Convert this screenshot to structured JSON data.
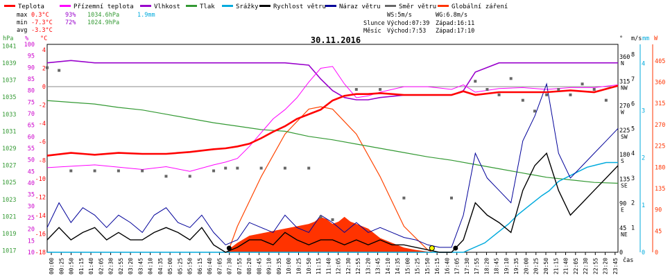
{
  "chart_data": {
    "type": "line",
    "title": "30.11.2016",
    "legend": [
      {
        "label": "Teplota",
        "color": "#ff0000"
      },
      {
        "label": "Přízemní teplota",
        "color": "#ff00ff"
      },
      {
        "label": "Vlhkost",
        "color": "#9900cc"
      },
      {
        "label": "Tlak",
        "color": "#339933"
      },
      {
        "label": "Srážky",
        "color": "#00aadd"
      },
      {
        "label": "Rychlost větru",
        "color": "#000000"
      },
      {
        "label": "Náraz větru",
        "color": "#000099"
      },
      {
        "label": "Směr větru",
        "color": "#666666"
      },
      {
        "label": "Globální záření",
        "color": "#ff3300"
      }
    ],
    "stats": {
      "max": {
        "label": "max",
        "temp": "0.3°C",
        "hum": "93%",
        "press": "1034.6hPa",
        "rain": "1.9mm"
      },
      "min": {
        "label": "min",
        "temp": "-7.3°C",
        "hum": "72%",
        "press": "1024.9hPa"
      },
      "avg": {
        "label": "avg",
        "temp": "-3.3°C"
      }
    },
    "info": {
      "ws": "WS:5m/s",
      "wg": "WG:6.8m/s",
      "sun_label": "Slunce",
      "sun_rise": "Východ:07:39",
      "sun_set": "Západ:16:11",
      "moon_label": "Měsíc",
      "moon_rise": "Východ:7:53",
      "moon_set": "Západ:17:10"
    },
    "axes": {
      "hpa": {
        "label": "hPa",
        "ticks": [
          "1041",
          "1039",
          "1037",
          "1035",
          "1033",
          "1031",
          "1029",
          "1027",
          "1025",
          "1023",
          "1021",
          "1019",
          "1017"
        ]
      },
      "pct": {
        "label": "%",
        "ticks": [
          "100",
          "95",
          "90",
          "85",
          "80",
          "75",
          "70",
          "65",
          "60",
          "55",
          "50",
          "45",
          "40",
          "35",
          "30",
          "25",
          "20",
          "15",
          "10"
        ]
      },
      "temp": {
        "label": "°C",
        "ticks": [
          "4",
          "2",
          "0",
          "-2",
          "-4",
          "-6",
          "-8",
          "-10",
          "-12",
          "-14",
          "-16",
          "-18"
        ]
      },
      "dir": {
        "label": "°",
        "ticks": [
          "360",
          "315",
          "270",
          "225",
          "180",
          "135",
          "90",
          "45",
          "0"
        ],
        "names": [
          "N",
          "NW",
          "W",
          "SW",
          "S",
          "SE",
          "E",
          "NE",
          ""
        ]
      },
      "ms": {
        "label": "m/s",
        "ticks": [
          "8",
          "7",
          "6",
          "5",
          "4",
          "3",
          "2",
          "1",
          "0"
        ]
      },
      "mm": {
        "label": "mm",
        "ticks": [
          "4",
          "3",
          "2",
          "1",
          "0"
        ]
      },
      "wm2": {
        "label": "W",
        "ticks": [
          "405",
          "360",
          "315",
          "270",
          "225",
          "180",
          "135",
          "90",
          "45",
          "0"
        ]
      },
      "xlabel": "čas",
      "xticks": [
        "00:00",
        "00:25",
        "00:50",
        "01:15",
        "01:40",
        "02:05",
        "02:30",
        "02:55",
        "03:20",
        "03:45",
        "04:10",
        "04:35",
        "05:00",
        "05:25",
        "05:50",
        "06:15",
        "06:40",
        "07:05",
        "07:30",
        "07:55",
        "08:20",
        "08:45",
        "09:10",
        "09:35",
        "10:00",
        "10:25",
        "10:50",
        "11:15",
        "11:40",
        "12:05",
        "12:30",
        "12:55",
        "13:20",
        "13:45",
        "14:10",
        "14:35",
        "15:00",
        "15:25",
        "15:50",
        "16:15",
        "16:40",
        "17:05",
        "17:30",
        "17:55",
        "18:20",
        "18:45",
        "19:10",
        "19:35",
        "20:00",
        "20:25",
        "20:50",
        "21:15",
        "21:40",
        "22:05",
        "22:30",
        "22:55",
        "23:20",
        "23:45"
      ]
    },
    "series": {
      "teplota_x": [
        0,
        1,
        2,
        3,
        4,
        5,
        6,
        7,
        7.5,
        8,
        8.5,
        9,
        9.5,
        10,
        10.5,
        11,
        11.5,
        12,
        12.5,
        13,
        13.5,
        14,
        14.5,
        15,
        16,
        17,
        17.5,
        18,
        19,
        20,
        21,
        22,
        23,
        24
      ],
      "teplota_y": [
        -7.5,
        -7.2,
        -7.4,
        -7.2,
        -7.3,
        -7.3,
        -7.1,
        -6.8,
        -6.7,
        -6.5,
        -6.2,
        -5.6,
        -4.9,
        -4.3,
        -3.5,
        -3,
        -2.5,
        -1.5,
        -1,
        -0.8,
        -0.8,
        -0.7,
        -0.8,
        -0.9,
        -0.9,
        -0.9,
        -0.5,
        -0.9,
        -0.6,
        -0.6,
        -0.6,
        -0.4,
        -0.6,
        0.1
      ],
      "prizemni_x": [
        0,
        2,
        4,
        5,
        6,
        7,
        7.5,
        8,
        8.5,
        9,
        9.5,
        10,
        10.5,
        11,
        11.5,
        12,
        12.5,
        13,
        13.5,
        14,
        15,
        16,
        17,
        17.5,
        18,
        19,
        20,
        21,
        22,
        23,
        24
      ],
      "prizemni_y": [
        -8.8,
        -8.5,
        -9,
        -8.7,
        -9.2,
        -8.5,
        -8.2,
        -7.8,
        -6.5,
        -5,
        -3.5,
        -2.5,
        -1.2,
        0.5,
        2,
        2.2,
        0.3,
        -1.2,
        -1,
        -0.6,
        0,
        0,
        -0.3,
        0.2,
        -0.6,
        -0.2,
        -0.1,
        -0.3,
        -0.1,
        -0.1,
        0.2
      ],
      "vlhkost_x": [
        0,
        1,
        2,
        3,
        4,
        5,
        6,
        7,
        8,
        9,
        10,
        11,
        11.5,
        12,
        12.5,
        13,
        13.5,
        14,
        15,
        16,
        17,
        17.5,
        18,
        19,
        20,
        21,
        22,
        23,
        24
      ],
      "vlhkost_y": [
        92,
        93,
        92,
        92,
        92,
        92,
        92,
        92,
        92,
        92,
        92,
        91,
        85,
        80,
        77,
        76,
        76,
        77,
        78,
        78,
        78,
        80,
        88,
        92,
        92,
        92,
        92,
        92,
        92
      ],
      "tlak_x": [
        0,
        1,
        2,
        3,
        4,
        5,
        6,
        7,
        8,
        9,
        10,
        11,
        12,
        13,
        14,
        15,
        16,
        17,
        18,
        19,
        20,
        21,
        22,
        23,
        24
      ],
      "tlak_y": [
        1034.6,
        1034.4,
        1034.2,
        1033.8,
        1033.5,
        1033,
        1032.5,
        1032,
        1031.6,
        1031.2,
        1031,
        1030.4,
        1030,
        1029.5,
        1029,
        1028.5,
        1028,
        1027.6,
        1027.1,
        1026.6,
        1026.1,
        1025.6,
        1025.3,
        1025,
        1024.9
      ],
      "srazky_x": [
        0,
        17.5,
        18.4,
        18.9,
        19.4,
        19.8,
        20.3,
        20.8,
        21.1,
        21.5,
        21.9,
        22.3,
        22.7,
        23.1,
        23.5,
        24
      ],
      "srazky_y": [
        0,
        0,
        0.2,
        0.4,
        0.6,
        0.8,
        1.0,
        1.2,
        1.3,
        1.5,
        1.6,
        1.7,
        1.8,
        1.85,
        1.9,
        1.9
      ],
      "rychlost_x": [
        0,
        0.5,
        1,
        1.5,
        2,
        2.5,
        3,
        3.5,
        4,
        4.5,
        5,
        5.5,
        6,
        6.5,
        7,
        7.5,
        8,
        8.5,
        9,
        9.5,
        10,
        10.5,
        11,
        11.5,
        12,
        12.5,
        13,
        13.5,
        14,
        14.5,
        15,
        15.5,
        16,
        16.5,
        17,
        17.5,
        18,
        18.5,
        19,
        19.5,
        20,
        20.5,
        21,
        21.5,
        22,
        22.5,
        23,
        23.5,
        24
      ],
      "rychlost_y": [
        0.5,
        1.0,
        0.5,
        0.8,
        1.0,
        0.5,
        0.8,
        0.5,
        0.5,
        0.8,
        1.0,
        0.8,
        0.5,
        1.0,
        0.3,
        0,
        0.2,
        0.5,
        0.5,
        0.3,
        0.8,
        0.5,
        0.3,
        0.5,
        0.5,
        0.3,
        0.5,
        0.3,
        0.5,
        0.3,
        0.3,
        0.2,
        0.1,
        0,
        0,
        0.5,
        2.0,
        1.5,
        1.2,
        0.8,
        2.5,
        3.5,
        4.0,
        2.5,
        1.5,
        2.0,
        2.5,
        3.0,
        3.5
      ],
      "naraz_x": [
        0,
        0.5,
        1,
        1.5,
        2,
        2.5,
        3,
        3.5,
        4,
        4.5,
        5,
        5.5,
        6,
        6.5,
        7,
        7.5,
        8,
        8.5,
        9,
        9.5,
        10,
        10.5,
        11,
        11.5,
        12,
        12.5,
        13,
        13.5,
        14,
        14.5,
        15,
        15.5,
        16,
        16.5,
        17,
        17.5,
        18,
        18.5,
        19,
        19.5,
        20,
        20.5,
        21,
        21.5,
        22,
        22.5,
        23,
        23.5,
        24
      ],
      "naraz_y": [
        1.0,
        2.0,
        1.2,
        1.8,
        1.5,
        1.0,
        1.5,
        1.2,
        0.8,
        1.5,
        1.8,
        1.2,
        1.0,
        1.5,
        0.8,
        0.3,
        0.5,
        1.2,
        1.0,
        0.8,
        1.5,
        1.0,
        0.8,
        1.5,
        1.2,
        0.8,
        1.2,
        0.8,
        1.0,
        0.8,
        0.6,
        0.5,
        0.3,
        0.2,
        0.2,
        1.5,
        4.0,
        3.0,
        2.5,
        2.0,
        4.5,
        5.5,
        6.8,
        4.0,
        3.0,
        3.5,
        4.0,
        4.5,
        5.0
      ],
      "smer_x": [
        0,
        0.5,
        1,
        2,
        3,
        4,
        5,
        6,
        7,
        7.5,
        8,
        9,
        10,
        11,
        11.5,
        12,
        13,
        14,
        15,
        17,
        18,
        18.5,
        19,
        19.5,
        20,
        20.5,
        21,
        21.5,
        22,
        22.5,
        23,
        23.5
      ],
      "smer_y": [
        340,
        335,
        150,
        150,
        150,
        150,
        140,
        140,
        150,
        155,
        155,
        155,
        155,
        155,
        65,
        60,
        300,
        300,
        100,
        100,
        315,
        300,
        290,
        320,
        280,
        260,
        290,
        300,
        290,
        310,
        300,
        280
      ],
      "zareni_x": [
        7.6,
        8,
        8.5,
        9,
        9.5,
        10,
        10.5,
        11,
        11.25,
        11.5,
        11.75,
        12,
        12.25,
        12.5,
        12.75,
        13,
        13.5,
        14,
        14.5,
        15,
        15.5,
        16.2
      ],
      "zareni_y": [
        5,
        20,
        35,
        40,
        45,
        50,
        55,
        60,
        65,
        75,
        70,
        60,
        65,
        75,
        65,
        60,
        50,
        30,
        20,
        10,
        5,
        0
      ],
      "teoreticke_x": [
        7.6,
        8,
        9,
        10,
        11,
        11.5,
        12,
        13,
        14,
        15,
        16,
        16.2
      ],
      "teoreticke_y": [
        0,
        55,
        160,
        250,
        303,
        308,
        303,
        250,
        160,
        55,
        5,
        0
      ]
    }
  }
}
